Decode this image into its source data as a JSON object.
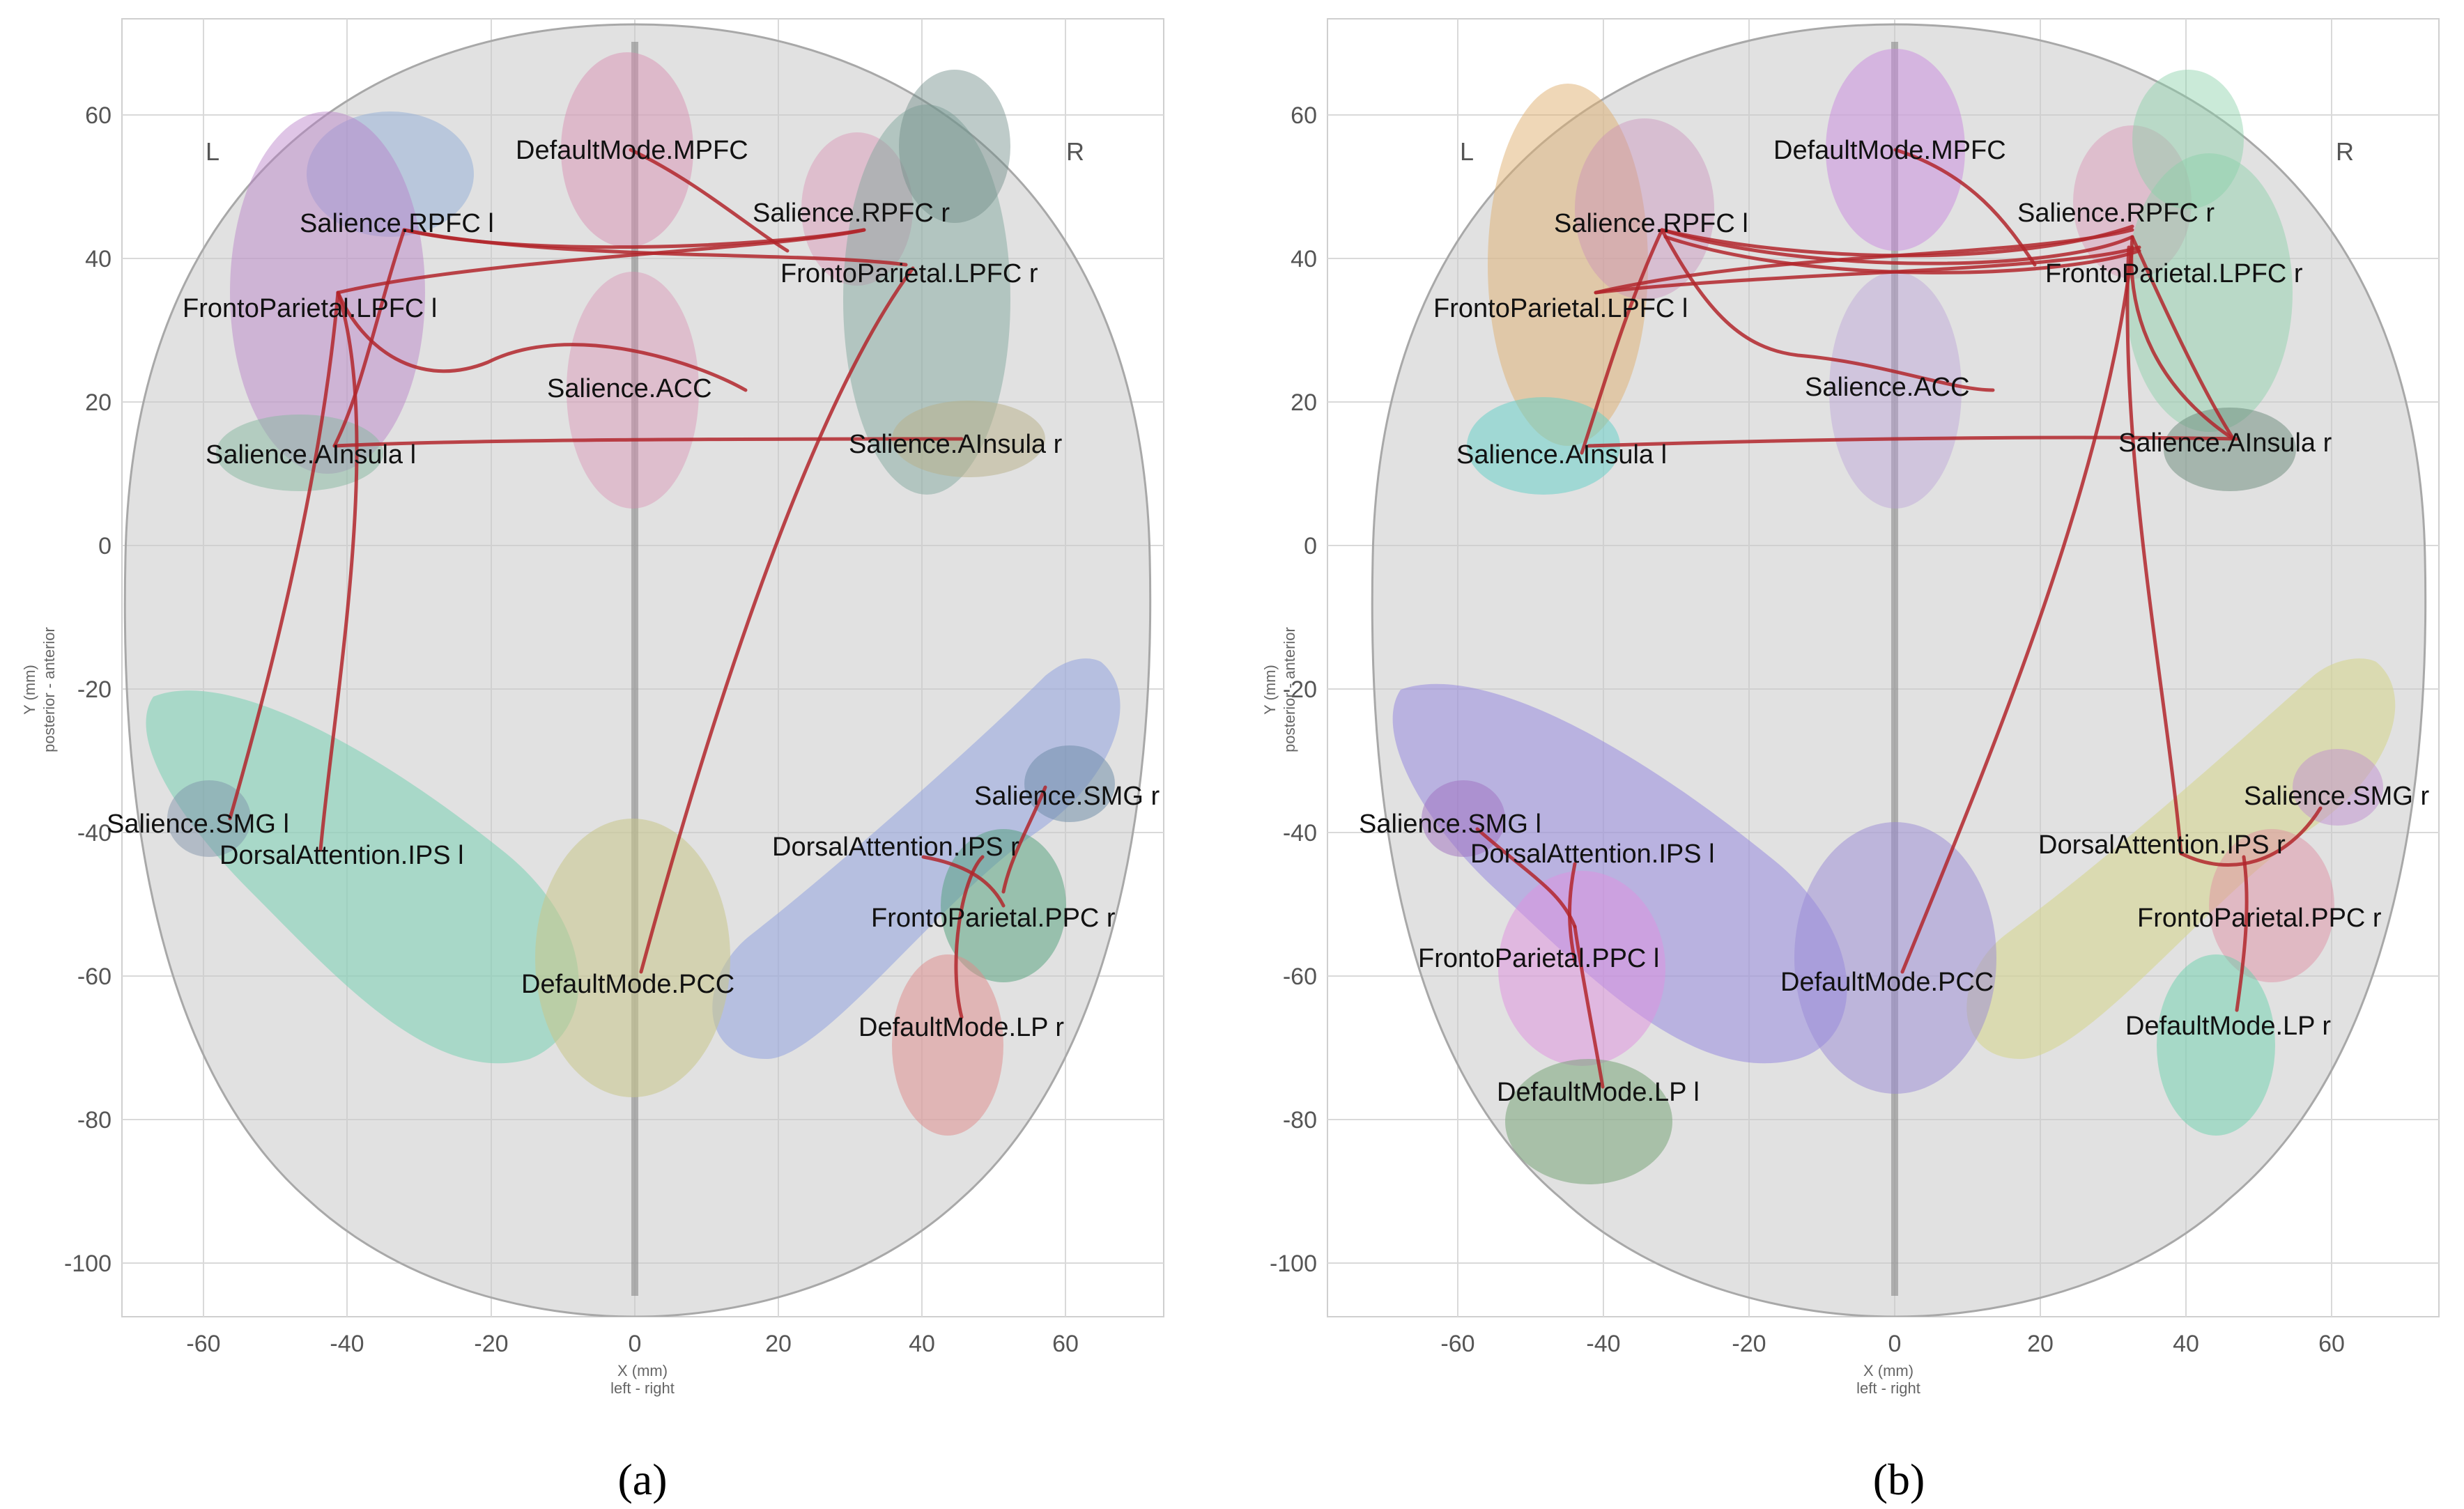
{
  "panels": [
    {
      "caption": "(a)",
      "hemisphere_left": "L",
      "hemisphere_right": "R",
      "x_label_line1": "X (mm)",
      "x_label_line2": "left - right",
      "y_label_line1": "Y (mm)",
      "y_label_line2": "posterior - anterior",
      "x_ticks": [
        "-60",
        "-40",
        "-20",
        "0",
        "20",
        "40",
        "60"
      ],
      "y_ticks": [
        "60",
        "40",
        "20",
        "0",
        "-20",
        "-40",
        "-60",
        "-80",
        "-100"
      ],
      "region_labels": [
        "DefaultMode.MPFC",
        "Salience.RPFC l",
        "Salience.RPFC r",
        "FrontoParietal.LPFC l",
        "FrontoParietal.LPFC r",
        "Salience.ACC",
        "Salience.AInsula l",
        "Salience.AInsula r",
        "Salience.SMG l",
        "DorsalAttention.IPS l",
        "Salience.SMG r",
        "DorsalAttention.IPS r",
        "FrontoParietal.PPC r",
        "DefaultMode.PCC",
        "DefaultMode.LP r"
      ]
    },
    {
      "caption": "(b)",
      "hemisphere_left": "L",
      "hemisphere_right": "R",
      "x_label_line1": "X (mm)",
      "x_label_line2": "left - right",
      "y_label_line1": "Y (mm)",
      "y_label_line2": "posterior - anterior",
      "x_ticks": [
        "-60",
        "-40",
        "-20",
        "0",
        "20",
        "40",
        "60"
      ],
      "y_ticks": [
        "60",
        "40",
        "20",
        "0",
        "-20",
        "-40",
        "-60",
        "-80",
        "-100"
      ],
      "region_labels": [
        "DefaultMode.MPFC",
        "Salience.RPFC l",
        "Salience.RPFC r",
        "FrontoParietal.LPFC l",
        "FrontoParietal.LPFC r",
        "Salience.ACC",
        "Salience.AInsula l",
        "Salience.AInsula r",
        "Salience.SMG r",
        "Salience.SMG l",
        "DorsalAttention.IPS l",
        "DorsalAttention.IPS r",
        "FrontoParietal.PPC l",
        "FrontoParietal.PPC r",
        "DefaultMode.PCC",
        "DefaultMode.LP r",
        "DefaultMode.LP l"
      ]
    }
  ]
}
